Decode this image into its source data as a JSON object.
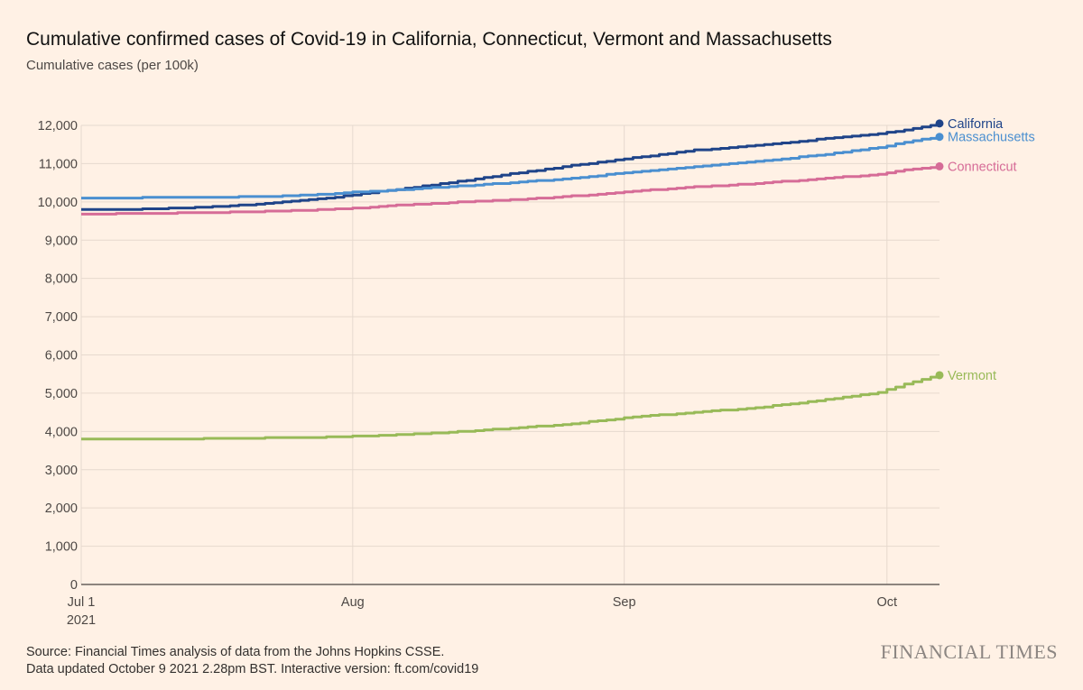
{
  "title": "Cumulative confirmed cases of Covid-19 in California, Connecticut, Vermont and Massachusetts",
  "subtitle": "Cumulative cases (per 100k)",
  "source_line1": "Source: Financial Times analysis of data from the Johns Hopkins CSSE.",
  "source_line2": "Data updated October 9 2021 2.28pm BST. Interactive version: ft.com/covid19",
  "brand": "FINANCIAL TIMES",
  "chart_data": {
    "type": "line",
    "title": "Cumulative confirmed cases of Covid-19 in California, Connecticut, Vermont and Massachusetts",
    "ylabel": "Cumulative cases (per 100k)",
    "xlabel": "",
    "xlim": [
      "2021-07-01",
      "2021-10-07"
    ],
    "ylim": [
      0,
      12000
    ],
    "grid": true,
    "y_ticks": [
      "0",
      "1,000",
      "2,000",
      "3,000",
      "4,000",
      "5,000",
      "6,000",
      "7,000",
      "8,000",
      "9,000",
      "10,000",
      "11,000",
      "12,000"
    ],
    "x_ticks": [
      {
        "date": "2021-07-01",
        "label": "Jul 1",
        "sublabel": "2021"
      },
      {
        "date": "2021-08-01",
        "label": "Aug",
        "sublabel": ""
      },
      {
        "date": "2021-09-01",
        "label": "Sep",
        "sublabel": ""
      },
      {
        "date": "2021-10-01",
        "label": "Oct",
        "sublabel": ""
      }
    ],
    "series": [
      {
        "name": "California",
        "color": "#1F4489",
        "points": [
          [
            "2021-07-01",
            9800
          ],
          [
            "2021-07-08",
            9810
          ],
          [
            "2021-07-15",
            9860
          ],
          [
            "2021-07-22",
            9950
          ],
          [
            "2021-07-29",
            10100
          ],
          [
            "2021-08-01",
            10180
          ],
          [
            "2021-08-05",
            10300
          ],
          [
            "2021-08-12",
            10500
          ],
          [
            "2021-08-19",
            10730
          ],
          [
            "2021-08-26",
            10950
          ],
          [
            "2021-09-02",
            11150
          ],
          [
            "2021-09-09",
            11350
          ],
          [
            "2021-09-16",
            11480
          ],
          [
            "2021-09-23",
            11630
          ],
          [
            "2021-09-30",
            11780
          ],
          [
            "2021-10-03",
            11880
          ],
          [
            "2021-10-07",
            12050
          ]
        ]
      },
      {
        "name": "Massachusetts",
        "color": "#4A8FD0",
        "points": [
          [
            "2021-07-01",
            10100
          ],
          [
            "2021-07-08",
            10110
          ],
          [
            "2021-07-15",
            10120
          ],
          [
            "2021-07-22",
            10140
          ],
          [
            "2021-07-29",
            10200
          ],
          [
            "2021-08-01",
            10250
          ],
          [
            "2021-08-05",
            10300
          ],
          [
            "2021-08-12",
            10400
          ],
          [
            "2021-08-19",
            10500
          ],
          [
            "2021-08-26",
            10620
          ],
          [
            "2021-09-02",
            10780
          ],
          [
            "2021-09-09",
            10920
          ],
          [
            "2021-09-16",
            11050
          ],
          [
            "2021-09-23",
            11220
          ],
          [
            "2021-09-30",
            11420
          ],
          [
            "2021-10-03",
            11560
          ],
          [
            "2021-10-07",
            11700
          ]
        ]
      },
      {
        "name": "Connecticut",
        "color": "#D66C97",
        "points": [
          [
            "2021-07-01",
            9680
          ],
          [
            "2021-07-08",
            9700
          ],
          [
            "2021-07-15",
            9720
          ],
          [
            "2021-07-22",
            9750
          ],
          [
            "2021-07-29",
            9800
          ],
          [
            "2021-08-01",
            9830
          ],
          [
            "2021-08-05",
            9900
          ],
          [
            "2021-08-12",
            9980
          ],
          [
            "2021-08-19",
            10050
          ],
          [
            "2021-08-26",
            10150
          ],
          [
            "2021-09-02",
            10280
          ],
          [
            "2021-09-09",
            10390
          ],
          [
            "2021-09-16",
            10480
          ],
          [
            "2021-09-23",
            10600
          ],
          [
            "2021-09-30",
            10720
          ],
          [
            "2021-10-03",
            10830
          ],
          [
            "2021-10-07",
            10930
          ]
        ]
      },
      {
        "name": "Vermont",
        "color": "#98BA58",
        "points": [
          [
            "2021-07-01",
            3800
          ],
          [
            "2021-07-08",
            3800
          ],
          [
            "2021-07-15",
            3810
          ],
          [
            "2021-07-22",
            3830
          ],
          [
            "2021-07-29",
            3850
          ],
          [
            "2021-08-01",
            3870
          ],
          [
            "2021-08-05",
            3900
          ],
          [
            "2021-08-12",
            3980
          ],
          [
            "2021-08-19",
            4080
          ],
          [
            "2021-08-26",
            4200
          ],
          [
            "2021-09-02",
            4380
          ],
          [
            "2021-09-09",
            4500
          ],
          [
            "2021-09-16",
            4620
          ],
          [
            "2021-09-23",
            4800
          ],
          [
            "2021-09-30",
            5020
          ],
          [
            "2021-10-03",
            5230
          ],
          [
            "2021-10-07",
            5470
          ]
        ]
      }
    ]
  }
}
